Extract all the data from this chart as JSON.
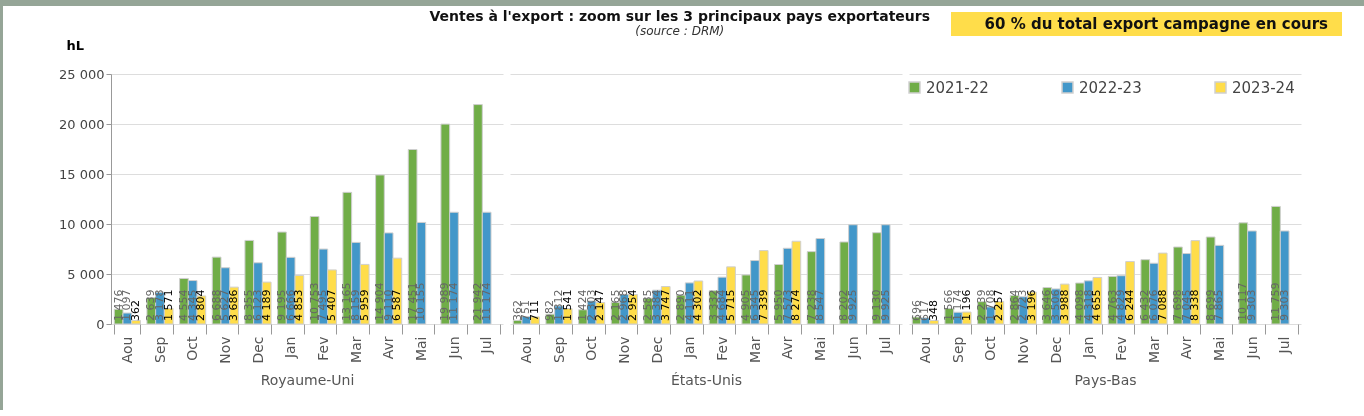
{
  "chart_data": [
    {
      "type": "bar",
      "ylabel": "hL",
      "xlabel": "Royaume-Uni",
      "categories": [
        "Aou",
        "Sep",
        "Oct",
        "Nov",
        "Dec",
        "Jan",
        "Fev",
        "Mar",
        "Avr",
        "Mai",
        "Jun",
        "Jul"
      ],
      "ylim": [
        0,
        25000
      ],
      "yticks": [
        0,
        {
          "value": 5000,
          "label": "5 000"
        },
        {
          "value": 10000,
          "label": "10 000"
        },
        {
          "value": 15000,
          "label": "15 000"
        },
        {
          "value": 20000,
          "label": "20 000"
        },
        {
          "value": 25000,
          "label": "25 000"
        }
      ],
      "grid": "y",
      "series": [
        {
          "color": "#70ad47",
          "values": [
            1476,
            2639,
            4554,
            6688,
            8355,
            9195,
            10753,
            13165,
            14904,
            17451,
            19989,
            21942
          ],
          "value_labels": [
            "1 476",
            "2 639",
            "4 554",
            "6 688",
            "8 355",
            "9 195",
            "10 753",
            "13 165",
            "14 904",
            "17 451",
            "19 989",
            "21 942"
          ]
        },
        {
          "color": "#4297c9",
          "values": [
            1097,
            3178,
            4345,
            5627,
            6123,
            6666,
            7495,
            8159,
            9110,
            10155,
            11174,
            11174
          ],
          "value_labels": [
            "1 097",
            "3 178",
            "4 345",
            "5 627",
            "6 123",
            "6 666",
            "7 495",
            "8 159",
            "9 110",
            "10 155",
            "11 174",
            "11 174"
          ]
        },
        {
          "color": "#ffdd4a",
          "values": [
            362,
            1571,
            2804,
            3686,
            4189,
            4853,
            5407,
            5959,
            6587,
            null,
            null,
            null
          ],
          "value_labels": [
            "362",
            "1 571",
            "2 804",
            "3 686",
            "4 189",
            "4 853",
            "5 407",
            "5 959",
            "6 587",
            null,
            null,
            null
          ]
        }
      ]
    },
    {
      "type": "bar",
      "title": "Ventes à l'export : zoom sur les  3 principaux pays exportateurs",
      "subtitle": "(source : DRM)",
      "xlabel": "États-Unis",
      "categories": [
        "Aou",
        "Sep",
        "Oct",
        "Nov",
        "Dec",
        "Jan",
        "Fev",
        "Mar",
        "Avr",
        "Mai",
        "Jun",
        "Jul"
      ],
      "ylim": [
        0,
        25000
      ],
      "yticks": [
        0,
        5000,
        10000,
        15000,
        20000,
        25000
      ],
      "grid": "y",
      "tick_labels": "x",
      "series": [
        {
          "color": "#70ad47",
          "values": [
            362,
            982,
            1424,
            2165,
            2585,
            2890,
            3332,
            4905,
            5950,
            7238,
            8202,
            9130
          ],
          "value_labels": [
            "362",
            "982",
            "1 424",
            "2 165",
            "2 585",
            "2 890",
            "3 332",
            "4 905",
            "5 950",
            "7 238",
            "8 202",
            "9 130"
          ]
        },
        {
          "color": "#4297c9",
          "values": [
            751,
            1812,
            2303,
            2968,
            3384,
            4111,
            4684,
            6345,
            7573,
            8547,
            9925,
            9925
          ],
          "value_labels": [
            "751",
            "1 812",
            "2 303",
            "2 968",
            "3 384",
            "4 111",
            "4 684",
            "6 345",
            "7 573",
            "8 547",
            "9 925",
            "9 925"
          ]
        },
        {
          "color": "#ffdd4a",
          "values": [
            711,
            1541,
            2147,
            2954,
            3747,
            4302,
            5715,
            7339,
            8274,
            null,
            null,
            null
          ],
          "value_labels": [
            "711",
            "1 541",
            "2 147",
            "2 954",
            "3 747",
            "4 302",
            "5 715",
            "7 339",
            "8 274",
            null,
            null,
            null
          ]
        }
      ]
    },
    {
      "type": "bar",
      "annotations": [
        "60 % du total export campagne en cours"
      ],
      "xlabel": "Pays-Bas",
      "categories": [
        "Aou",
        "Sep",
        "Oct",
        "Nov",
        "Dec",
        "Jan",
        "Fev",
        "Mar",
        "Avr",
        "Mai",
        "Jun",
        "Jul"
      ],
      "ylim": [
        0,
        25000
      ],
      "yticks": [
        0,
        5000,
        10000,
        15000,
        20000,
        25000
      ],
      "grid": "y",
      "tick_labels": "x",
      "legend": "top right",
      "series": [
        {
          "name": "2021-22",
          "color": "#70ad47",
          "values": [
            696,
            1566,
            2239,
            2864,
            3646,
            4098,
            4763,
            6432,
            7698,
            8699,
            10117,
            11759
          ],
          "value_labels": [
            "696",
            "1 566",
            "2 239",
            "2 864",
            "3 646",
            "4 098",
            "4 763",
            "6 432",
            "7 698",
            "8 699",
            "10 117",
            "11 759"
          ]
        },
        {
          "name": "2022-23",
          "color": "#4297c9",
          "values": [
            617,
            1174,
            1708,
            2723,
            3506,
            4318,
            4829,
            6076,
            7045,
            7865,
            9303,
            9303
          ],
          "value_labels": [
            "617",
            "1 174",
            "1 708",
            "2 723",
            "3 506",
            "4 318",
            "4 829",
            "6 076",
            "7 045",
            "7 865",
            "9 303",
            "9 303"
          ]
        },
        {
          "name": "2023-24",
          "color": "#ffdd4a",
          "values": [
            348,
            1196,
            2257,
            3196,
            3988,
            4655,
            6244,
            7088,
            8338,
            null,
            null,
            null
          ],
          "value_labels": [
            "348",
            "1 196",
            "2 257",
            "3 196",
            "3 988",
            "4 655",
            "6 244",
            "7 088",
            "8 338",
            null,
            null,
            null
          ]
        }
      ]
    }
  ]
}
